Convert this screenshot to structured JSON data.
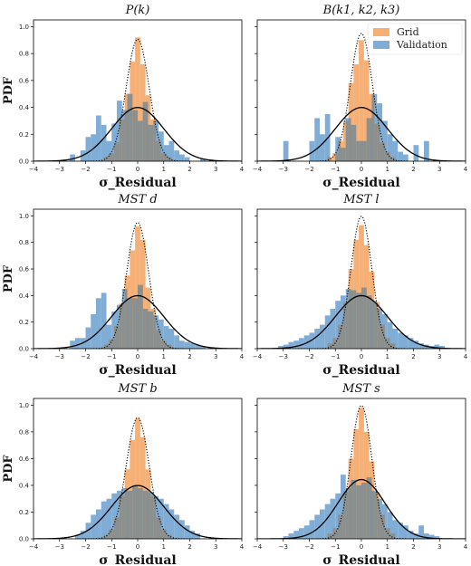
{
  "colors": {
    "grid": "#f5a25d",
    "validation": "#6a9fcf",
    "overlap": "#8a8f8f",
    "gauss": "#000000"
  },
  "chart_data": [
    {
      "type": "bar",
      "title": "P(k)",
      "xlabel": "σ_Residual",
      "ylabel": "PDF",
      "xlim": [
        -4,
        4
      ],
      "ylim": [
        0,
        1.05
      ],
      "x_ticks": [
        "−4",
        "−3",
        "−2",
        "−1",
        "0",
        "1",
        "2",
        "3",
        "4"
      ],
      "y_ticks": [
        "0.0",
        "0.2",
        "0.4",
        "0.6",
        "0.8",
        "1.0"
      ],
      "series": [
        {
          "name": "Grid",
          "bin_start": -1.3,
          "bin_width": 0.2,
          "values": [
            0.03,
            0.06,
            0.14,
            0.31,
            0.5,
            0.74,
            0.92,
            0.72,
            0.49,
            0.31,
            0.15,
            0.06,
            0.03
          ]
        },
        {
          "name": "Validation",
          "bin_start": -2.6,
          "bin_width": 0.2,
          "values": [
            0.05,
            0.0,
            0.08,
            0.18,
            0.2,
            0.34,
            0.27,
            0.15,
            0.28,
            0.45,
            0.38,
            0.5,
            0.38,
            0.3,
            0.44,
            0.27,
            0.3,
            0.22,
            0.12,
            0.15,
            0.08,
            0.05,
            0.03,
            0.0,
            0.0,
            0.02
          ]
        }
      ],
      "gauss": [
        {
          "mu": 0.0,
          "sigma": 1.0,
          "style": "solid"
        },
        {
          "mu": 0.0,
          "sigma": 0.44,
          "style": "dotted"
        }
      ]
    },
    {
      "type": "bar",
      "title": "B(k1, k2, k3)",
      "xlabel": "σ_Residual",
      "ylabel": "",
      "xlim": [
        -4,
        4
      ],
      "ylim": [
        0,
        1.05
      ],
      "x_ticks": [
        "−4",
        "−3",
        "−2",
        "−1",
        "0",
        "1",
        "2",
        "3",
        "4"
      ],
      "y_ticks": [],
      "legend": {
        "position": "top-right",
        "entries": [
          "Grid",
          "Validation"
        ]
      },
      "series": [
        {
          "name": "Grid",
          "bin_start": -1.3,
          "bin_width": 0.2,
          "values": [
            0.03,
            0.06,
            0.15,
            0.3,
            0.58,
            0.72,
            0.9,
            0.75,
            0.5,
            0.28,
            0.14,
            0.07,
            0.03
          ]
        },
        {
          "name": "Validation",
          "bin_start": -3.0,
          "bin_width": 0.2,
          "values": [
            0.15,
            0.0,
            0.0,
            0.0,
            0.0,
            0.15,
            0.32,
            0.2,
            0.35,
            0.0,
            0.18,
            0.1,
            0.32,
            0.27,
            0.15,
            0.15,
            0.32,
            0.5,
            0.43,
            0.3,
            0.2,
            0.15,
            0.07,
            0.05,
            0.0,
            0.12,
            0.0,
            0.15
          ]
        }
      ],
      "gauss": [
        {
          "mu": 0.0,
          "sigma": 1.0,
          "style": "solid"
        },
        {
          "mu": 0.0,
          "sigma": 0.42,
          "style": "dotted"
        }
      ]
    },
    {
      "type": "bar",
      "title": "MST d",
      "xlabel": "σ_Residual",
      "ylabel": "PDF",
      "xlim": [
        -4,
        4
      ],
      "ylim": [
        0,
        1.05
      ],
      "x_ticks": [
        "−4",
        "−3",
        "−2",
        "−1",
        "0",
        "1",
        "2",
        "3",
        "4"
      ],
      "y_ticks": [
        "0.0",
        "0.2",
        "0.4",
        "0.6",
        "0.8",
        "1.0"
      ],
      "series": [
        {
          "name": "Grid",
          "bin_start": -1.3,
          "bin_width": 0.2,
          "values": [
            0.03,
            0.07,
            0.17,
            0.34,
            0.55,
            0.74,
            0.92,
            0.82,
            0.46,
            0.3,
            0.14,
            0.06,
            0.03
          ]
        },
        {
          "name": "Validation",
          "bin_start": -2.6,
          "bin_width": 0.2,
          "values": [
            0.06,
            0.08,
            0.08,
            0.16,
            0.26,
            0.38,
            0.42,
            0.18,
            0.28,
            0.33,
            0.45,
            0.38,
            0.38,
            0.48,
            0.3,
            0.28,
            0.25,
            0.22,
            0.17,
            0.15,
            0.1,
            0.06,
            0.05,
            0.04,
            0.03,
            0.02
          ]
        }
      ],
      "gauss": [
        {
          "mu": 0.0,
          "sigma": 1.0,
          "style": "solid"
        },
        {
          "mu": 0.0,
          "sigma": 0.42,
          "style": "dotted"
        }
      ]
    },
    {
      "type": "bar",
      "title": "MST l",
      "xlabel": "σ_Residual",
      "ylabel": "",
      "xlim": [
        -4,
        4
      ],
      "ylim": [
        0,
        1.05
      ],
      "x_ticks": [
        "−4",
        "−3",
        "−2",
        "−1",
        "0",
        "1",
        "2",
        "3",
        "4"
      ],
      "y_ticks": [],
      "series": [
        {
          "name": "Grid",
          "bin_start": -1.3,
          "bin_width": 0.2,
          "values": [
            0.04,
            0.08,
            0.18,
            0.35,
            0.6,
            0.82,
            0.93,
            0.78,
            0.58,
            0.35,
            0.18,
            0.08,
            0.04
          ]
        },
        {
          "name": "Validation",
          "bin_start": -3.2,
          "bin_width": 0.2,
          "values": [
            0.02,
            0.03,
            0.05,
            0.06,
            0.08,
            0.1,
            0.12,
            0.15,
            0.18,
            0.25,
            0.3,
            0.36,
            0.4,
            0.45,
            0.44,
            0.42,
            0.46,
            0.4,
            0.36,
            0.3,
            0.26,
            0.2,
            0.15,
            0.12,
            0.1,
            0.08,
            0.06,
            0.04,
            0.03,
            0.02,
            0.03,
            0.02
          ]
        }
      ],
      "gauss": [
        {
          "mu": 0.0,
          "sigma": 1.0,
          "style": "solid"
        },
        {
          "mu": 0.0,
          "sigma": 0.4,
          "style": "dotted"
        }
      ]
    },
    {
      "type": "bar",
      "title": "MST b",
      "xlabel": "σ_Residual",
      "ylabel": "PDF",
      "xlim": [
        -4,
        4
      ],
      "ylim": [
        0,
        1.05
      ],
      "x_ticks": [
        "−4",
        "−3",
        "−2",
        "−1",
        "0",
        "1",
        "2",
        "3",
        "4"
      ],
      "y_ticks": [
        "0.0",
        "0.2",
        "0.4",
        "0.6",
        "0.8",
        "1.0"
      ],
      "series": [
        {
          "name": "Grid",
          "bin_start": -1.3,
          "bin_width": 0.2,
          "values": [
            0.03,
            0.07,
            0.16,
            0.32,
            0.52,
            0.74,
            0.9,
            0.76,
            0.52,
            0.32,
            0.16,
            0.07,
            0.03
          ]
        },
        {
          "name": "Validation",
          "bin_start": -2.4,
          "bin_width": 0.2,
          "values": [
            0.03,
            0.06,
            0.12,
            0.18,
            0.22,
            0.28,
            0.3,
            0.34,
            0.36,
            0.38,
            0.36,
            0.4,
            0.38,
            0.36,
            0.35,
            0.32,
            0.3,
            0.26,
            0.22,
            0.18,
            0.14,
            0.1,
            0.06,
            0.04
          ]
        }
      ],
      "gauss": [
        {
          "mu": 0.0,
          "sigma": 1.0,
          "style": "solid"
        },
        {
          "mu": 0.0,
          "sigma": 0.44,
          "style": "dotted"
        }
      ]
    },
    {
      "type": "bar",
      "title": "MST s",
      "xlabel": "σ_Residual",
      "ylabel": "",
      "xlim": [
        -4,
        4
      ],
      "ylim": [
        0,
        1.05
      ],
      "x_ticks": [
        "−4",
        "−3",
        "−2",
        "−1",
        "0",
        "1",
        "2",
        "3",
        "4"
      ],
      "y_ticks": [],
      "series": [
        {
          "name": "Grid",
          "bin_start": -1.3,
          "bin_width": 0.2,
          "values": [
            0.04,
            0.08,
            0.18,
            0.35,
            0.6,
            0.82,
            0.98,
            0.8,
            0.58,
            0.35,
            0.18,
            0.08,
            0.04
          ]
        },
        {
          "name": "Validation",
          "bin_start": -3.0,
          "bin_width": 0.2,
          "values": [
            0.02,
            0.04,
            0.06,
            0.08,
            0.1,
            0.14,
            0.18,
            0.22,
            0.26,
            0.3,
            0.34,
            0.48,
            0.38,
            0.44,
            0.4,
            0.42,
            0.46,
            0.36,
            0.3,
            0.26,
            0.2,
            0.14,
            0.12,
            0.1,
            0.06,
            0.04,
            0.1,
            0.04,
            0.03,
            0.02,
            0.0,
            0.0,
            0.0,
            0.0,
            0.0,
            0.0,
            0.05
          ]
        }
      ],
      "gauss": [
        {
          "mu": 0.0,
          "sigma": 0.9,
          "style": "solid"
        },
        {
          "mu": 0.0,
          "sigma": 0.4,
          "style": "dotted"
        }
      ]
    }
  ]
}
